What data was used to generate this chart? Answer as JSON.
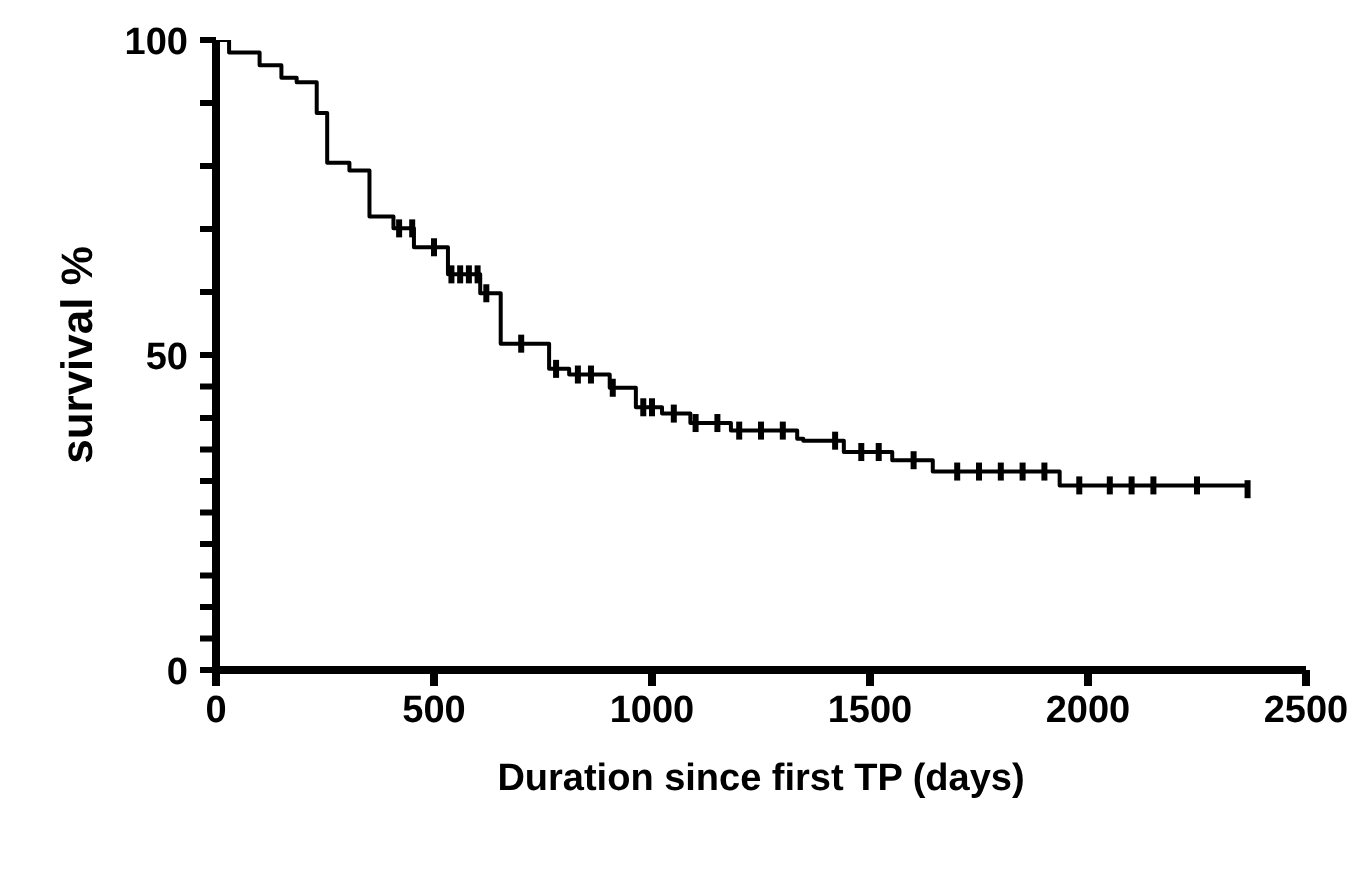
{
  "chart_data": {
    "type": "step",
    "xlabel": "Duration since first TP (days)",
    "ylabel": "survival %",
    "series": [
      {
        "color": "#000000",
        "x": [
          0,
          30,
          100,
          150,
          185,
          231,
          255,
          306,
          352,
          407,
          454,
          532,
          606,
          653,
          764,
          810,
          903,
          963,
          1023,
          1088,
          1181,
          1333,
          1347,
          1440,
          1551,
          1644,
          1935,
          2366
        ],
        "values": [
          100,
          98,
          96,
          94,
          93.3,
          88.4,
          80.5,
          79.3,
          72,
          70.1,
          67.1,
          62.8,
          59.8,
          51.8,
          47.8,
          46.9,
          44.8,
          41.7,
          40.7,
          39.2,
          38,
          36.7,
          36.4,
          34.6,
          33.3,
          31.5,
          29.3,
          28.7
        ]
      },
      {
        "type": "scatter",
        "marker": "square",
        "color": "#000000",
        "x": [
          420,
          450,
          500,
          540,
          560,
          580,
          600,
          620,
          700,
          780,
          830,
          860,
          910,
          980,
          1000,
          1050,
          1100,
          1150,
          1200,
          1250,
          1300,
          1420,
          1480,
          1520,
          1600,
          1700,
          1750,
          1800,
          1850,
          1900,
          1980,
          2050,
          2100,
          2150,
          2250,
          2366
        ],
        "values": [
          70.1,
          70.1,
          67.1,
          62.8,
          62.8,
          62.8,
          62.8,
          59.8,
          51.8,
          47.8,
          46.9,
          46.9,
          44.8,
          41.7,
          41.7,
          40.7,
          39.2,
          39.2,
          38,
          38,
          38,
          36.4,
          34.6,
          34.6,
          33.3,
          31.5,
          31.5,
          31.5,
          31.5,
          31.5,
          29.3,
          29.3,
          29.3,
          29.3,
          29.3,
          28.7
        ]
      }
    ],
    "xlim": [
      0,
      2500
    ],
    "xticks": [
      0,
      500,
      1000,
      1500,
      2000,
      2500
    ],
    "ylim": [
      0,
      100
    ],
    "yticks": [
      0,
      {
        "value": 5,
        "label": null
      },
      {
        "value": 10,
        "label": null
      },
      {
        "value": 15,
        "label": null
      },
      {
        "value": 20,
        "label": null
      },
      {
        "value": 25,
        "label": null
      },
      {
        "value": 30,
        "label": null
      },
      {
        "value": 35,
        "label": null
      },
      {
        "value": 40,
        "label": null
      },
      {
        "value": 45,
        "label": null
      },
      50,
      {
        "value": 60,
        "label": null
      },
      {
        "value": 70,
        "label": null
      },
      {
        "value": 80,
        "label": null
      },
      {
        "value": 90,
        "label": null
      },
      100
    ],
    "grid": false,
    "line_style": "solid"
  }
}
